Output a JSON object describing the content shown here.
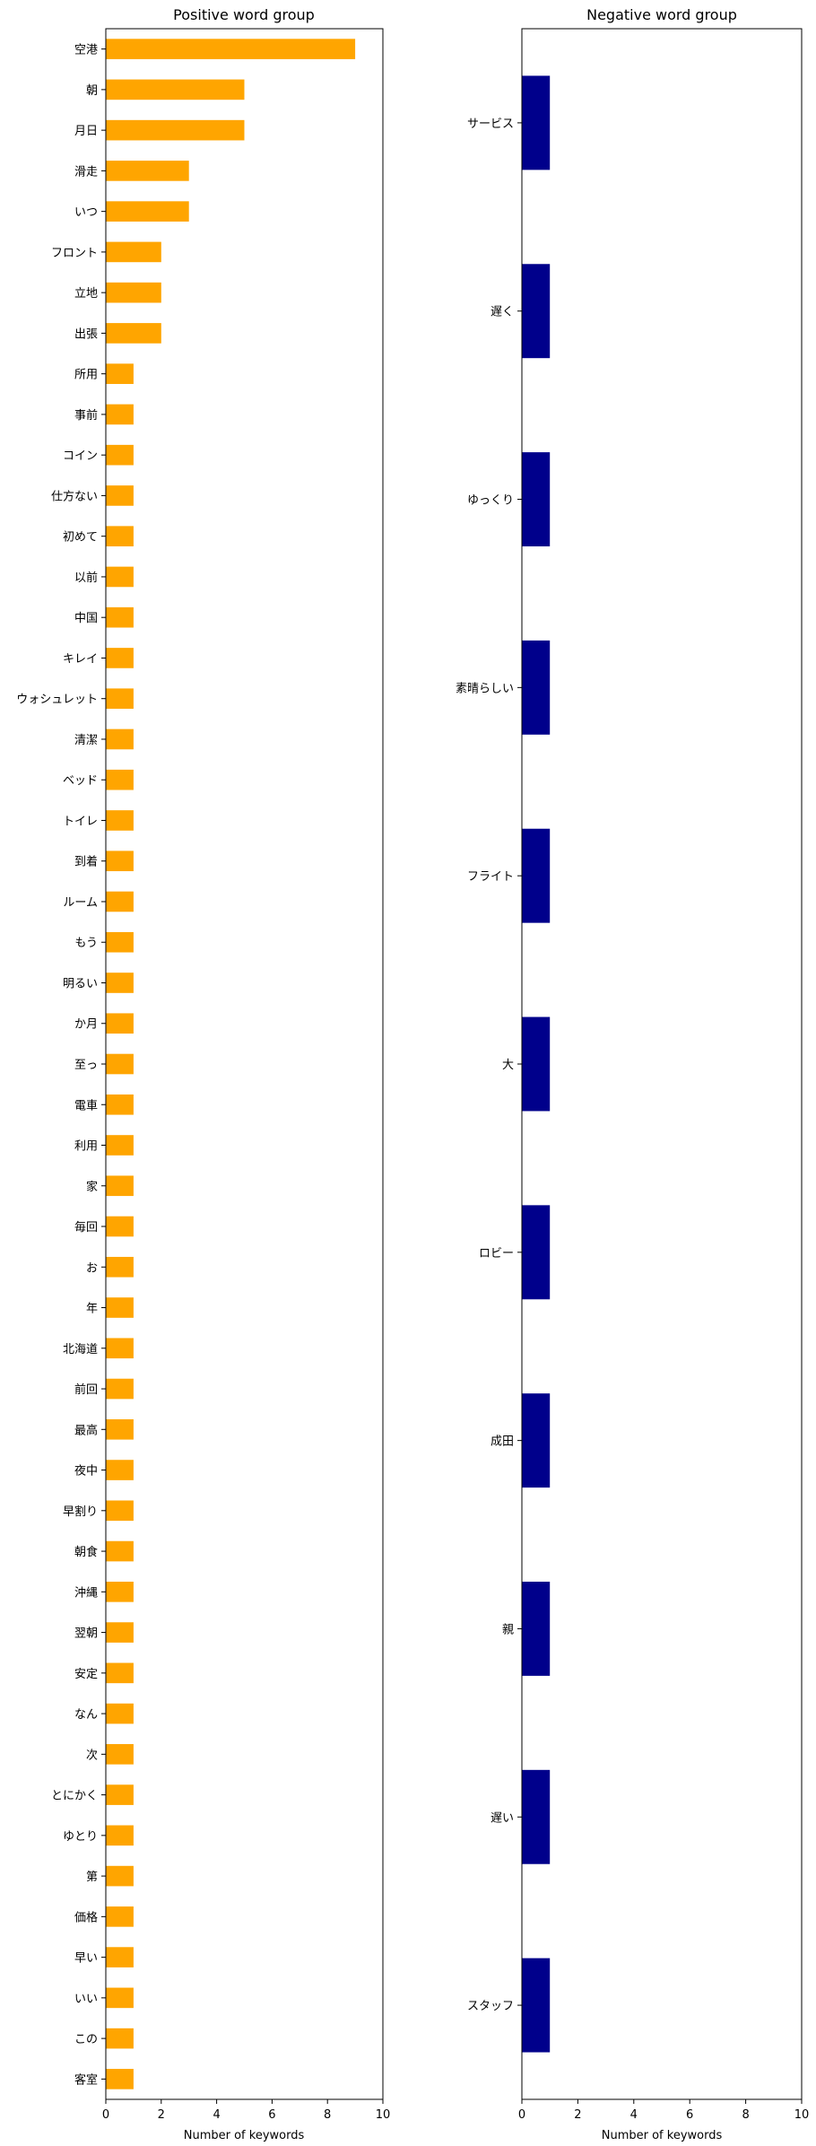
{
  "chart_data": [
    {
      "type": "bar",
      "orientation": "horizontal",
      "title": "Positive word group",
      "xlabel": "Number of keywords",
      "ylabel": "",
      "xlim": [
        0,
        10
      ],
      "xticks": [
        "0",
        "2",
        "4",
        "6",
        "8",
        "10"
      ],
      "color": "#FFA500",
      "categories": [
        "空港",
        "朝",
        "月日",
        "滑走",
        "いつ",
        "フロント",
        "立地",
        "出張",
        "所用",
        "事前",
        "コイン",
        "仕方ない",
        "初めて",
        "以前",
        "中国",
        "キレイ",
        "ウォシュレット",
        "清潔",
        "ベッド",
        "トイレ",
        "到着",
        "ルーム",
        "もう",
        "明るい",
        "か月",
        "至っ",
        "電車",
        "利用",
        "家",
        "毎回",
        "お",
        "年",
        "北海道",
        "前回",
        "最高",
        "夜中",
        "早割り",
        "朝食",
        "沖縄",
        "翌朝",
        "安定",
        "なん",
        "次",
        "とにかく",
        "ゆとり",
        "第",
        "価格",
        "早い",
        "いい",
        "この",
        "客室"
      ],
      "values": [
        9,
        5,
        5,
        3,
        3,
        2,
        2,
        2,
        1,
        1,
        1,
        1,
        1,
        1,
        1,
        1,
        1,
        1,
        1,
        1,
        1,
        1,
        1,
        1,
        1,
        1,
        1,
        1,
        1,
        1,
        1,
        1,
        1,
        1,
        1,
        1,
        1,
        1,
        1,
        1,
        1,
        1,
        1,
        1,
        1,
        1,
        1,
        1,
        1,
        1,
        1
      ],
      "grid": false
    },
    {
      "type": "bar",
      "orientation": "horizontal",
      "title": "Negative word group",
      "xlabel": "Number of keywords",
      "ylabel": "",
      "xlim": [
        0,
        10
      ],
      "xticks": [
        "0",
        "2",
        "4",
        "6",
        "8",
        "10"
      ],
      "color": "#00008B",
      "categories": [
        "サービス",
        "遅く",
        "ゆっくり",
        "素晴らしい",
        "フライト",
        "大",
        "ロビー",
        "成田",
        "親",
        "遅い",
        "スタッフ"
      ],
      "values": [
        1,
        1,
        1,
        1,
        1,
        1,
        1,
        1,
        1,
        1,
        1
      ],
      "grid": false
    }
  ]
}
